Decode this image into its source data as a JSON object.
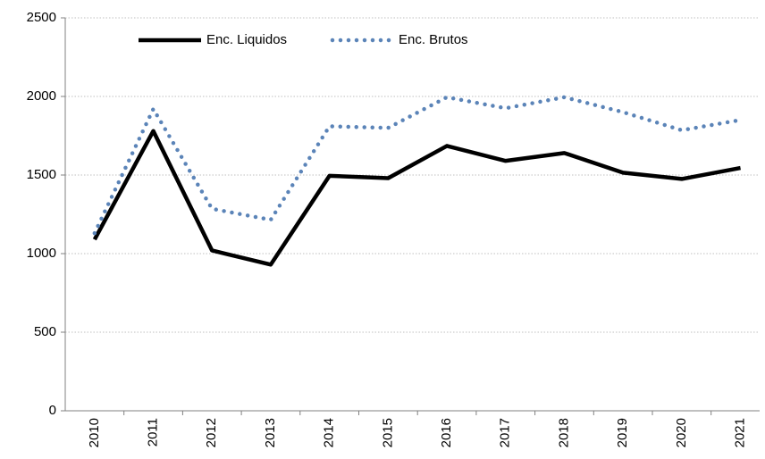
{
  "chart_data": {
    "type": "line",
    "categories": [
      "2010",
      "2011",
      "2012",
      "2013",
      "2014",
      "2015",
      "2016",
      "2017",
      "2018",
      "2019",
      "2020",
      "2021"
    ],
    "series": [
      {
        "name": "Enc. Liquidos",
        "color": "#000000",
        "style": "solid",
        "values": [
          1090,
          1780,
          1020,
          930,
          1495,
          1480,
          1685,
          1590,
          1640,
          1515,
          1475,
          1545
        ]
      },
      {
        "name": "Enc. Brutos",
        "color": "#5b84b8",
        "style": "dotted",
        "values": [
          1130,
          1920,
          1285,
          1215,
          1810,
          1800,
          1995,
          1925,
          1995,
          1900,
          1785,
          1850
        ]
      }
    ],
    "ylim": [
      0,
      2500
    ],
    "yticks": [
      0,
      500,
      1000,
      1500,
      2000,
      2500
    ],
    "grid": true,
    "legend": "top-left"
  }
}
